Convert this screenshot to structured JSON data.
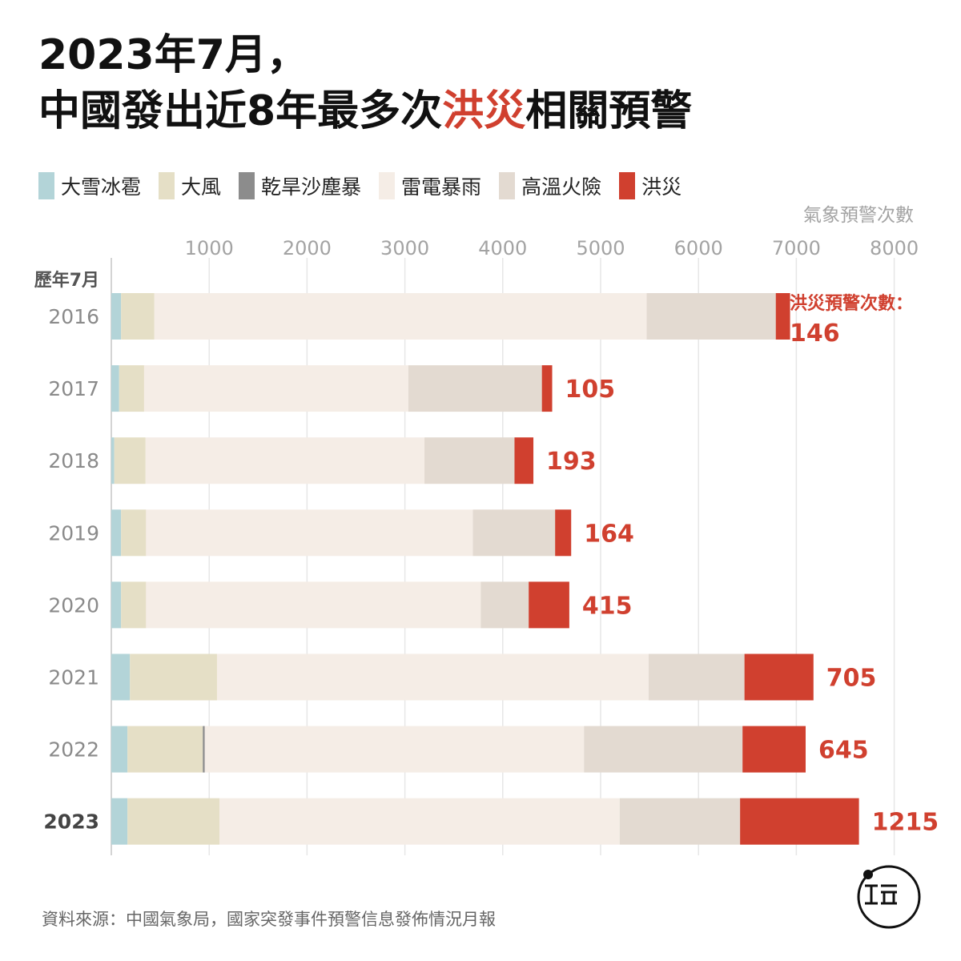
{
  "title": {
    "line1": "2023年7月，",
    "line2_before": "中國發出近8年最多次",
    "line2_highlight": "洪災",
    "line2_after": "相關預警"
  },
  "legend": [
    {
      "label": "大雪冰雹",
      "color": "#b3d4d8"
    },
    {
      "label": "大風",
      "color": "#e5dfc6"
    },
    {
      "label": "乾旱沙塵暴",
      "color": "#8c8c8c"
    },
    {
      "label": "雷電暴雨",
      "color": "#f5ede6"
    },
    {
      "label": "高溫火險",
      "color": "#e3dad1"
    },
    {
      "label": "洪災",
      "color": "#d0402f"
    }
  ],
  "source": "資料來源：中國氣象局，國家突發事件預警信息發佈情況月報",
  "chart_data": {
    "type": "bar",
    "orientation": "horizontal",
    "stacked": true,
    "xlabel": "氣象預警次數",
    "ylabel": "歷年7月",
    "xlim": [
      0,
      8000
    ],
    "xticks": [
      1000,
      2000,
      3000,
      4000,
      5000,
      6000,
      7000,
      8000
    ],
    "grid": true,
    "legend_position": "top",
    "categories": [
      "2016",
      "2017",
      "2018",
      "2019",
      "2020",
      "2021",
      "2022",
      "2023"
    ],
    "highlight_category": "2023",
    "flood_annotation_label": "洪災預警次數：",
    "series": [
      {
        "name": "大雪冰雹",
        "color": "#b3d4d8",
        "values": [
          100,
          80,
          30,
          100,
          100,
          190,
          165,
          165
        ]
      },
      {
        "name": "大風",
        "color": "#e5dfc6",
        "values": [
          340,
          255,
          320,
          255,
          255,
          890,
          770,
          940
        ]
      },
      {
        "name": "乾旱沙塵暴",
        "color": "#8c8c8c",
        "values": [
          0,
          0,
          0,
          0,
          0,
          0,
          20,
          0
        ]
      },
      {
        "name": "雷電暴雨",
        "color": "#f5ede6",
        "values": [
          5030,
          2700,
          2850,
          3340,
          3420,
          4410,
          3875,
          4090
        ]
      },
      {
        "name": "高溫火險",
        "color": "#e3dad1",
        "values": [
          1320,
          1365,
          920,
          840,
          490,
          980,
          1620,
          1230
        ]
      },
      {
        "name": "洪災",
        "color": "#d0402f",
        "values": [
          146,
          105,
          193,
          164,
          415,
          705,
          645,
          1215
        ]
      }
    ]
  }
}
